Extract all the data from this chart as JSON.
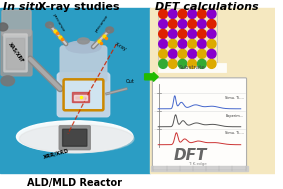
{
  "title_left_italic": "In situ",
  "title_left_normal": " X-ray studies",
  "title_right": "DFT calculations",
  "bottom_label": "ALD/MLD Reactor",
  "bg_color_left": "#2b9dc4",
  "bg_color_right": "#f5e8c0",
  "arrow_color": "#22bb00",
  "fig_width": 2.83,
  "fig_height": 1.89,
  "dpi": 100,
  "atom_rows": [
    [
      "#dd2200",
      "#8800cc",
      "#dd2200",
      "#8800cc",
      "#dd2200",
      "#8800cc"
    ],
    [
      "#8800cc",
      "#dd2200",
      "#8800cc",
      "#dd2200",
      "#8800cc",
      "#dd2200"
    ],
    [
      "#dd2200",
      "#8800cc",
      "#dd2200",
      "#8800cc",
      "#dd2200",
      "#8800cc"
    ],
    [
      "#8800cc",
      "#ddaa00",
      "#8800cc",
      "#ddaa00",
      "#8800cc",
      "#ddaa00"
    ],
    [
      "#ddaa00",
      "#8800cc",
      "#ddaa00",
      "#8800cc",
      "#ddaa00",
      "#8800cc"
    ],
    [
      "#33aa33",
      "#ddaa00",
      "#33aa33",
      "#ddaa00",
      "#33aa33",
      "#ddaa00"
    ]
  ],
  "xas_label": "XAS/XRF",
  "xrd_label": "XRR/XRD",
  "precursor1": "precursor",
  "precursor2": "precursor",
  "xray_label": "X-ray",
  "out_label": "Out",
  "dft_label": "DFT",
  "ti_kedge": "Ti K-edge",
  "substrate_label": "Substrate"
}
